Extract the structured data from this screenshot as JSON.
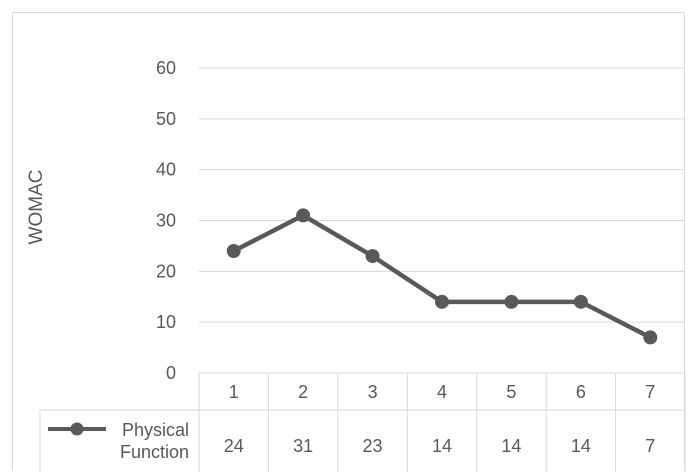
{
  "chart_data": {
    "type": "line",
    "categories": [
      "1",
      "2",
      "3",
      "4",
      "5",
      "6",
      "7"
    ],
    "series": [
      {
        "name": "Physical Function",
        "values": [
          24,
          31,
          23,
          14,
          14,
          14,
          7
        ]
      }
    ],
    "title": "",
    "xlabel": "",
    "ylabel": "WOMAC",
    "ylim": [
      0,
      60
    ],
    "yticks": [
      "0",
      "10",
      "20",
      "30",
      "40",
      "50",
      "60"
    ],
    "grid": true,
    "legend": "data-table-left",
    "data_table": true,
    "colors": {
      "series": "#595959",
      "grid": "#d9d9d9",
      "text": "#595959"
    }
  }
}
